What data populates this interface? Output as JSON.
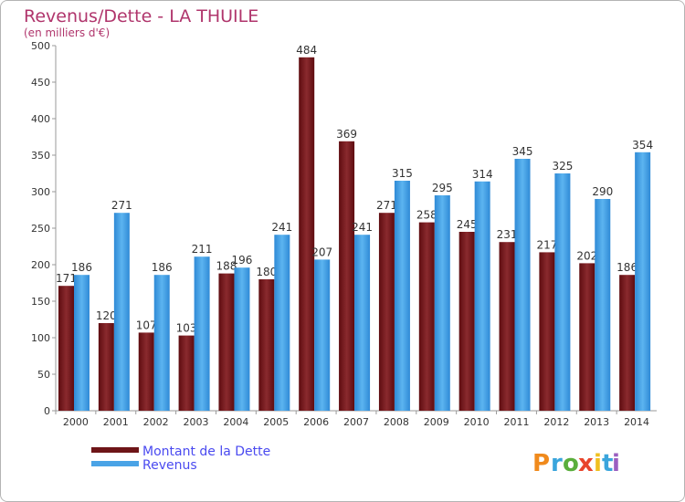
{
  "chart_data": {
    "type": "bar",
    "title": "Revenus/Dette - LA THUILE",
    "subtitle": "(en milliers d'€)",
    "categories": [
      "2000",
      "2001",
      "2002",
      "2003",
      "2004",
      "2005",
      "2006",
      "2007",
      "2008",
      "2009",
      "2010",
      "2011",
      "2012",
      "2013",
      "2014"
    ],
    "series": [
      {
        "name": "Montant de la Dette",
        "color": "#7a1f23",
        "values": [
          171,
          120,
          107,
          103,
          188,
          180,
          484,
          369,
          271,
          258,
          245,
          231,
          217,
          202,
          186
        ]
      },
      {
        "name": "Revenus",
        "color": "#4aa3e6",
        "values": [
          186,
          271,
          186,
          211,
          196,
          241,
          207,
          241,
          315,
          295,
          314,
          345,
          325,
          290,
          354
        ]
      }
    ],
    "ylim": [
      0,
      500
    ],
    "yticks": [
      0,
      50,
      100,
      150,
      200,
      250,
      300,
      350,
      400,
      450,
      500
    ],
    "grid": false,
    "legend_position": "bottom-left",
    "xlabel": "",
    "ylabel": ""
  },
  "brand": {
    "letters": [
      "P",
      "r",
      "o",
      "x",
      "i",
      "t",
      "i"
    ],
    "colors": [
      "#f08a1c",
      "#3aa5dc",
      "#5aae3c",
      "#e8452c",
      "#f0c020",
      "#3aa5dc",
      "#9b5fc0"
    ]
  }
}
